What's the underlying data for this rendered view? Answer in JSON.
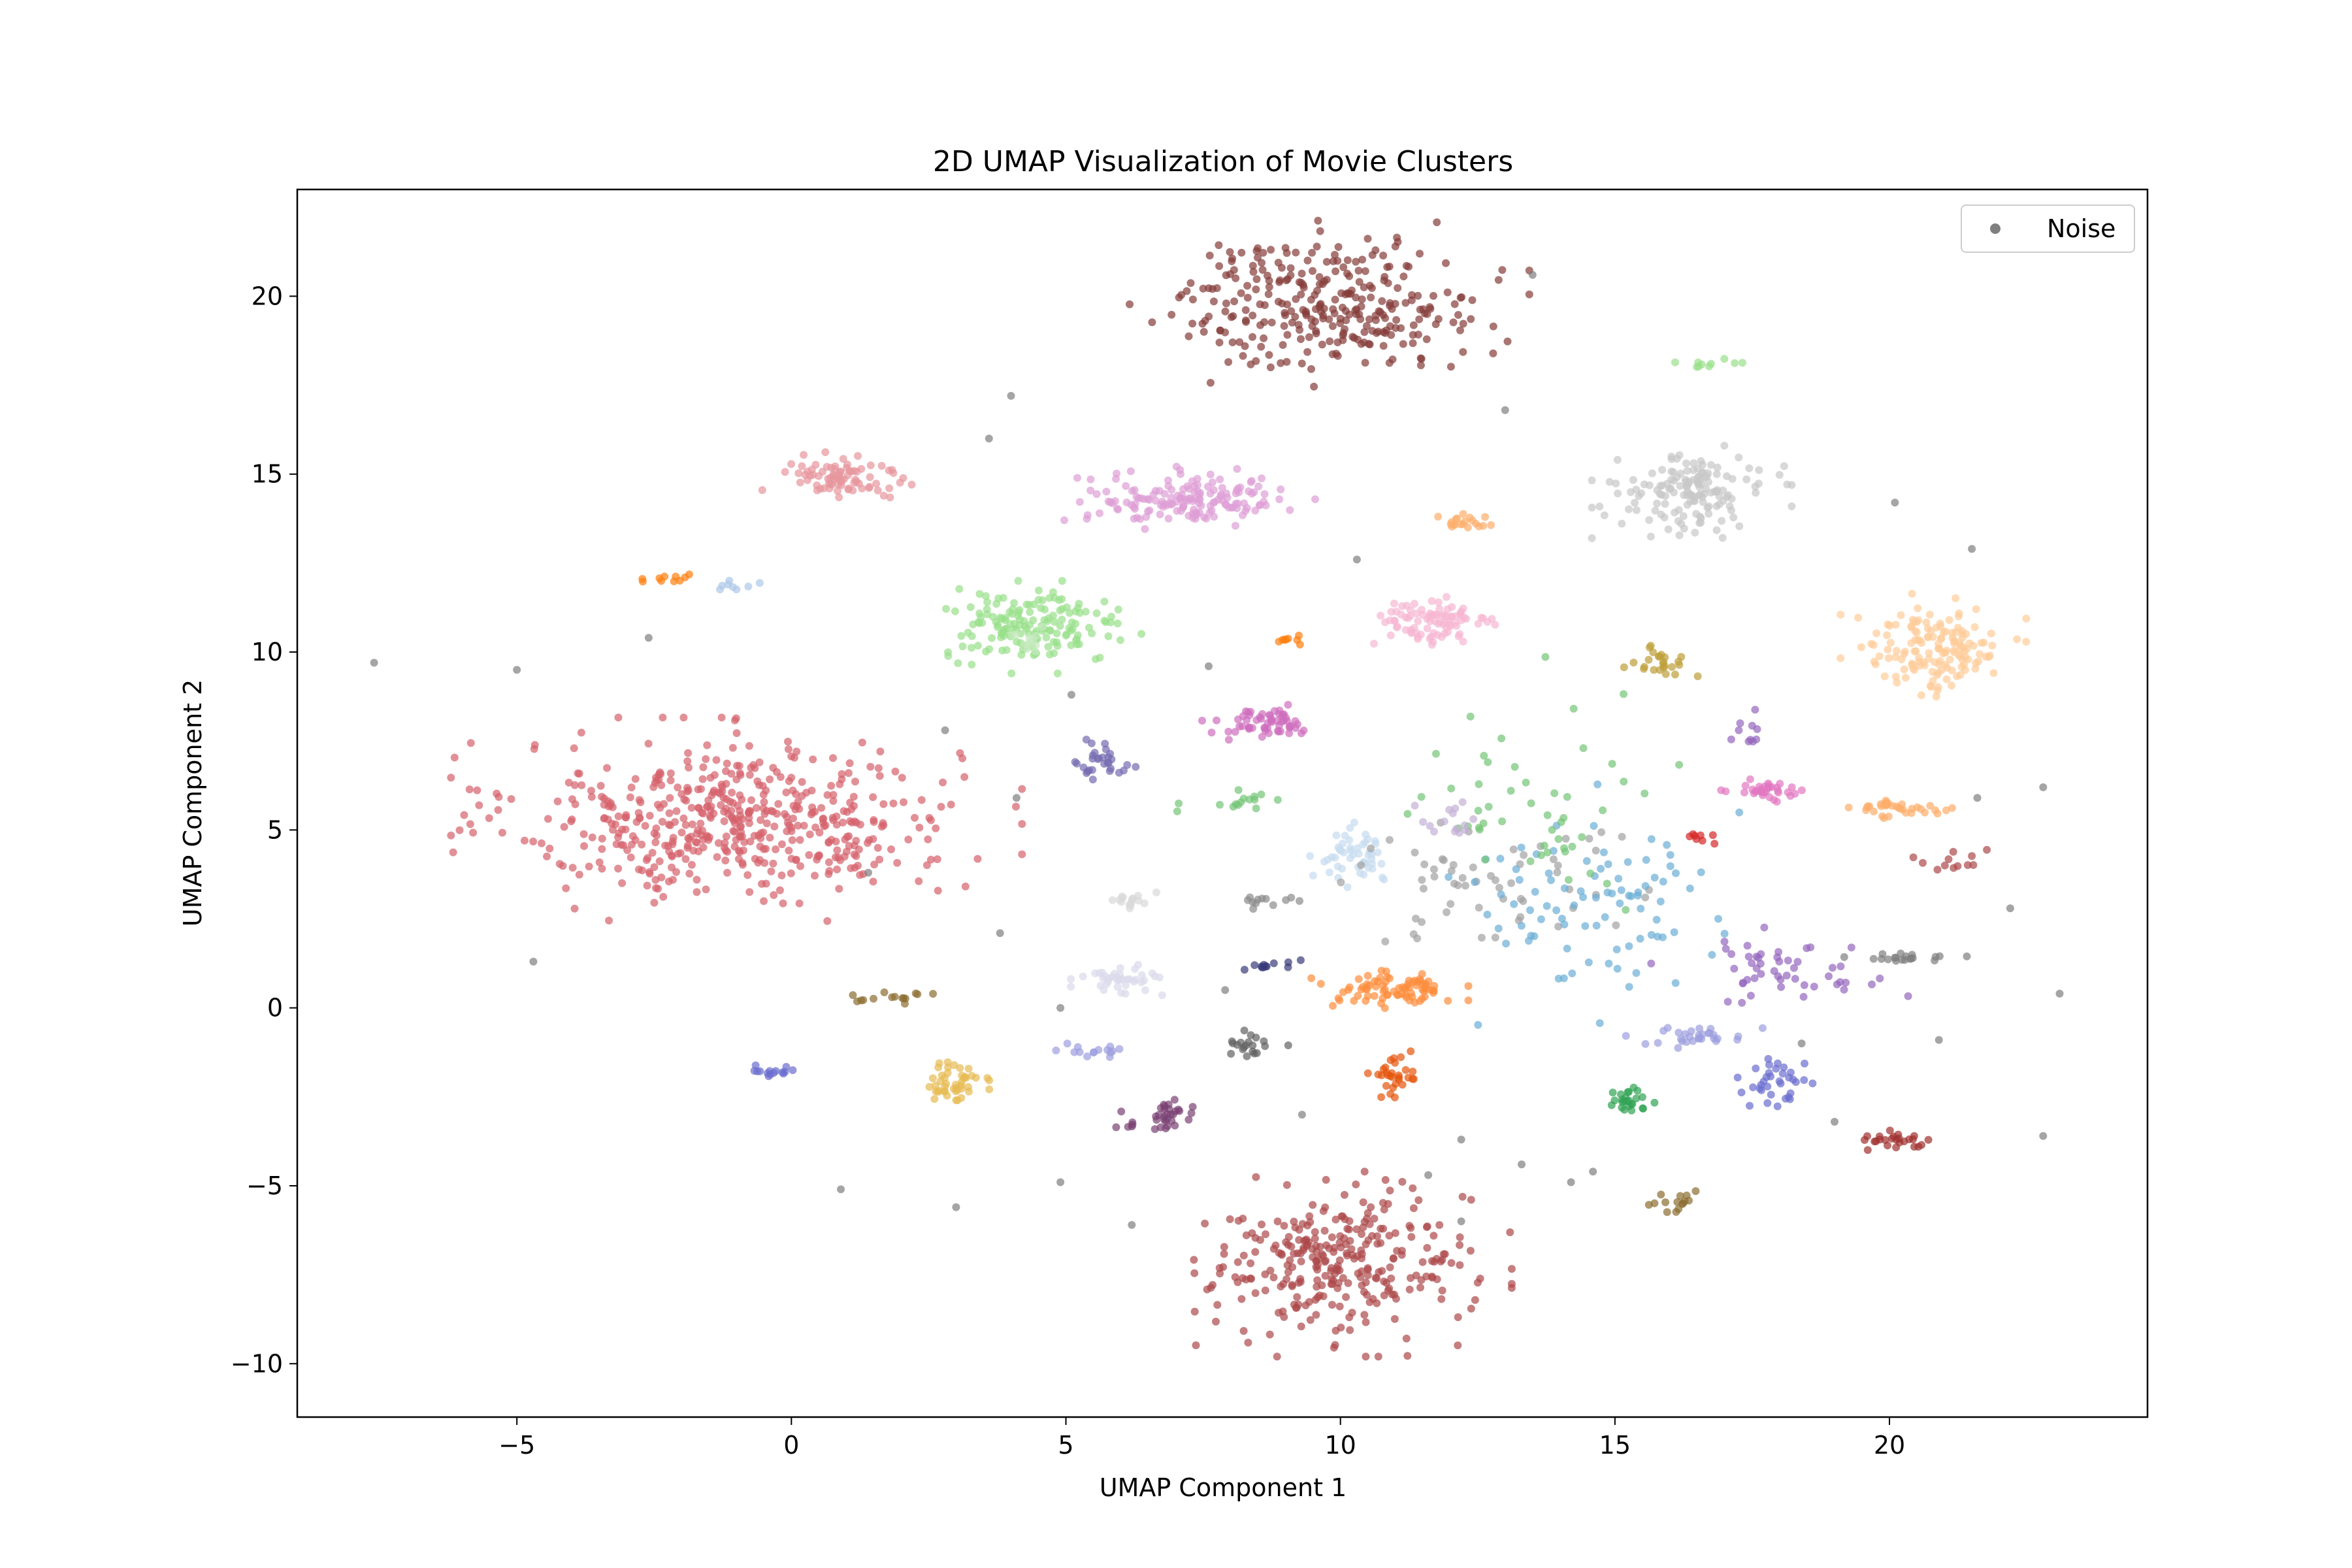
{
  "chart_data": {
    "type": "scatter",
    "title": "2D UMAP Visualization of Movie Clusters",
    "xlabel": "UMAP Component 1",
    "ylabel": "UMAP Component 2",
    "xlim": [
      -9,
      24.7
    ],
    "ylim": [
      -11.5,
      23
    ],
    "xticks": [
      -5,
      0,
      5,
      10,
      15,
      20
    ],
    "yticks": [
      -10,
      -5,
      0,
      5,
      10,
      15,
      20
    ],
    "xtick_labels": [
      "−5",
      "0",
      "5",
      "10",
      "15",
      "20"
    ],
    "ytick_labels": [
      "−10",
      "−5",
      "0",
      "5",
      "10",
      "15",
      "20"
    ],
    "grid": false,
    "legend": {
      "position": "top-right",
      "entries": [
        {
          "name": "Noise",
          "color": "#7f7f7f"
        }
      ]
    },
    "clusters": [
      {
        "cx": -1.0,
        "cy": 5.3,
        "sx": 2.0,
        "sy": 1.1,
        "n": 520,
        "color": "#d6616b"
      },
      {
        "cx": 9.8,
        "cy": 19.8,
        "sx": 1.4,
        "sy": 0.9,
        "n": 300,
        "color": "#843c39"
      },
      {
        "cx": 10.0,
        "cy": -7.2,
        "sx": 1.2,
        "sy": 1.0,
        "n": 300,
        "color": "#ad494a"
      },
      {
        "cx": 7.2,
        "cy": 14.3,
        "sx": 0.9,
        "sy": 0.35,
        "n": 160,
        "color": "#de9ed6"
      },
      {
        "cx": 4.4,
        "cy": 10.7,
        "sx": 0.8,
        "sy": 0.5,
        "n": 160,
        "color": "#98df8a"
      },
      {
        "cx": 16.4,
        "cy": 14.5,
        "sx": 0.7,
        "sy": 0.5,
        "n": 150,
        "color": "#c7c7c7"
      },
      {
        "cx": 20.8,
        "cy": 10.1,
        "sx": 0.65,
        "sy": 0.6,
        "n": 150,
        "color": "#ffcc99"
      },
      {
        "cx": 0.9,
        "cy": 14.9,
        "sx": 0.55,
        "sy": 0.35,
        "n": 80,
        "color": "#e7969c"
      },
      {
        "cx": 11.7,
        "cy": 10.8,
        "sx": 0.55,
        "sy": 0.35,
        "n": 90,
        "color": "#f7b6d2"
      },
      {
        "cx": 10.9,
        "cy": 0.5,
        "sx": 0.55,
        "sy": 0.25,
        "n": 80,
        "color": "#fd8d3c"
      },
      {
        "cx": 8.6,
        "cy": 8.0,
        "sx": 0.45,
        "sy": 0.2,
        "n": 60,
        "color": "#ce6dbd"
      },
      {
        "cx": 10.3,
        "cy": 4.3,
        "sx": 0.35,
        "sy": 0.35,
        "n": 50,
        "color": "#c6dbef"
      },
      {
        "cx": 6.0,
        "cy": 0.8,
        "sx": 0.35,
        "sy": 0.2,
        "n": 40,
        "color": "#dadaeb"
      },
      {
        "cx": 2.9,
        "cy": -2.1,
        "sx": 0.3,
        "sy": 0.3,
        "n": 45,
        "color": "#e7ba52"
      },
      {
        "cx": 6.8,
        "cy": -3.1,
        "sx": 0.35,
        "sy": 0.2,
        "n": 35,
        "color": "#7b4173"
      },
      {
        "cx": 17.8,
        "cy": 6.1,
        "sx": 0.35,
        "sy": 0.15,
        "n": 35,
        "color": "#e377c2"
      },
      {
        "cx": 20.3,
        "cy": 5.6,
        "sx": 0.45,
        "sy": 0.12,
        "n": 35,
        "color": "#fdae6b"
      },
      {
        "cx": 5.7,
        "cy": 6.9,
        "sx": 0.25,
        "sy": 0.25,
        "n": 30,
        "color": "#756bb1"
      },
      {
        "cx": 18.0,
        "cy": -2.0,
        "sx": 0.3,
        "sy": 0.35,
        "n": 35,
        "color": "#6b6ecf"
      },
      {
        "cx": 10.9,
        "cy": -2.0,
        "sx": 0.2,
        "sy": 0.3,
        "n": 30,
        "color": "#e6550d"
      },
      {
        "cx": 15.2,
        "cy": -2.6,
        "sx": 0.2,
        "sy": 0.15,
        "n": 25,
        "color": "#31a354"
      },
      {
        "cx": 20.0,
        "cy": -3.7,
        "sx": 0.3,
        "sy": 0.12,
        "n": 25,
        "color": "#a0302f"
      },
      {
        "cx": 15.8,
        "cy": 9.7,
        "sx": 0.3,
        "sy": 0.25,
        "n": 25,
        "color": "#bd9e39"
      },
      {
        "cx": 12.3,
        "cy": 13.7,
        "sx": 0.25,
        "sy": 0.15,
        "n": 20,
        "color": "#fdae6b"
      },
      {
        "cx": 8.4,
        "cy": -1.0,
        "sx": 0.25,
        "sy": 0.15,
        "n": 20,
        "color": "#636363"
      },
      {
        "cx": -0.3,
        "cy": -1.8,
        "sx": 0.2,
        "sy": 0.1,
        "n": 15,
        "color": "#6b6ecf"
      },
      {
        "cx": 5.6,
        "cy": -1.2,
        "sx": 0.3,
        "sy": 0.1,
        "n": 15,
        "color": "#9c9ede"
      },
      {
        "cx": 16.5,
        "cy": -0.8,
        "sx": 0.5,
        "sy": 0.15,
        "n": 30,
        "color": "#9c9ede"
      },
      {
        "cx": 1.9,
        "cy": 0.3,
        "sx": 0.3,
        "sy": 0.1,
        "n": 15,
        "color": "#8c6d31"
      },
      {
        "cx": 6.1,
        "cy": 3.0,
        "sx": 0.25,
        "sy": 0.12,
        "n": 15,
        "color": "#d9d9d9"
      },
      {
        "cx": 8.8,
        "cy": 1.2,
        "sx": 0.25,
        "sy": 0.08,
        "n": 12,
        "color": "#393b79"
      },
      {
        "cx": 4.4,
        "cy": 10.3,
        "sx": 0.2,
        "sy": 0.2,
        "n": 12,
        "color": "#c7e9c0"
      },
      {
        "cx": 16.0,
        "cy": -5.4,
        "sx": 0.25,
        "sy": 0.15,
        "n": 15,
        "color": "#8c6d31"
      },
      {
        "cx": 20.2,
        "cy": 1.4,
        "sx": 0.5,
        "sy": 0.06,
        "n": 20,
        "color": "#7f7f7f"
      },
      {
        "cx": 12.5,
        "cy": 3.8,
        "sx": 1.2,
        "sy": 1.0,
        "n": 60,
        "color": "#a1a1a1"
      },
      {
        "cx": 14.5,
        "cy": 2.9,
        "sx": 1.2,
        "sy": 1.3,
        "n": 90,
        "color": "#6baed6"
      },
      {
        "cx": 13.8,
        "cy": 6.0,
        "sx": 1.1,
        "sy": 1.5,
        "n": 50,
        "color": "#74c476"
      },
      {
        "cx": 18.0,
        "cy": 1.0,
        "sx": 0.9,
        "sy": 0.5,
        "n": 50,
        "color": "#9467bd"
      },
      {
        "cx": 12.0,
        "cy": 5.3,
        "sx": 0.3,
        "sy": 0.3,
        "n": 15,
        "color": "#c5b0d5"
      },
      {
        "cx": 16.6,
        "cy": 4.8,
        "sx": 0.15,
        "sy": 0.08,
        "n": 8,
        "color": "#d62728"
      },
      {
        "cx": 16.9,
        "cy": 18.1,
        "sx": 0.35,
        "sy": 0.08,
        "n": 10,
        "color": "#98df8a"
      },
      {
        "cx": 8.0,
        "cy": 5.8,
        "sx": 0.5,
        "sy": 0.15,
        "n": 15,
        "color": "#74c476"
      },
      {
        "cx": 9.0,
        "cy": 10.3,
        "sx": 0.15,
        "sy": 0.1,
        "n": 8,
        "color": "#ff7f0e"
      },
      {
        "cx": -2.2,
        "cy": 12.1,
        "sx": 0.25,
        "sy": 0.08,
        "n": 10,
        "color": "#ff7f0e"
      },
      {
        "cx": -1.0,
        "cy": 11.8,
        "sx": 0.2,
        "sy": 0.1,
        "n": 8,
        "color": "#aec7e8"
      },
      {
        "cx": 21.1,
        "cy": 4.1,
        "sx": 0.35,
        "sy": 0.15,
        "n": 12,
        "color": "#ad494a"
      },
      {
        "cx": 17.3,
        "cy": 7.6,
        "sx": 0.2,
        "sy": 0.3,
        "n": 10,
        "color": "#9467bd"
      },
      {
        "cx": 8.5,
        "cy": 3.0,
        "sx": 0.3,
        "sy": 0.1,
        "n": 12,
        "color": "#8c8c8c"
      }
    ],
    "noise_points": [
      [
        -7.6,
        9.7
      ],
      [
        -4.7,
        1.3
      ],
      [
        0.9,
        -5.1
      ],
      [
        3.0,
        -5.6
      ],
      [
        6.2,
        -6.1
      ],
      [
        4.9,
        -4.9
      ],
      [
        3.6,
        16.0
      ],
      [
        4.0,
        17.2
      ],
      [
        10.3,
        12.6
      ],
      [
        13.0,
        16.8
      ],
      [
        13.5,
        20.6
      ],
      [
        20.1,
        14.2
      ],
      [
        21.5,
        12.9
      ],
      [
        22.8,
        6.2
      ],
      [
        21.6,
        5.9
      ],
      [
        22.2,
        2.8
      ],
      [
        20.9,
        -0.9
      ],
      [
        22.8,
        -3.6
      ],
      [
        23.1,
        0.4
      ],
      [
        12.2,
        -6.0
      ],
      [
        9.3,
        -3.0
      ],
      [
        11.6,
        -4.7
      ],
      [
        7.6,
        9.6
      ],
      [
        4.1,
        5.9
      ],
      [
        -2.6,
        10.4
      ],
      [
        -5.0,
        9.5
      ],
      [
        7.9,
        0.5
      ],
      [
        12.2,
        -3.7
      ],
      [
        13.3,
        -4.4
      ],
      [
        14.2,
        -4.9
      ],
      [
        14.6,
        -4.6
      ],
      [
        18.4,
        -1.0
      ],
      [
        19.0,
        -3.2
      ],
      [
        1.4,
        3.8
      ],
      [
        3.8,
        2.1
      ],
      [
        2.8,
        7.8
      ],
      [
        5.1,
        8.8
      ],
      [
        4.9,
        0.0
      ]
    ]
  }
}
